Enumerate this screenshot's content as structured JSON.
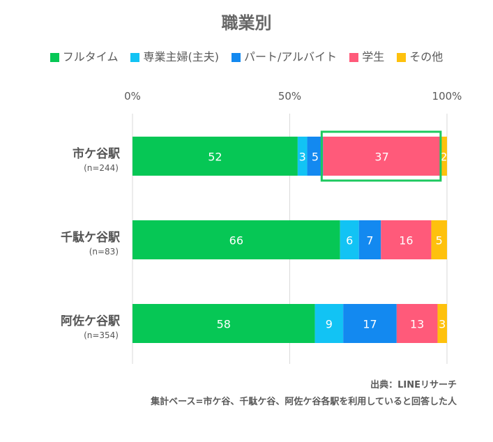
{
  "chart_data": {
    "type": "bar",
    "orientation": "horizontal",
    "stacked": true,
    "title": "職業別",
    "categories": [
      "市ケ谷駅",
      "千駄ケ谷駅",
      "阿佐ケ谷駅"
    ],
    "sample_sizes": [
      "(n=244)",
      "(n=83)",
      "(n=354)"
    ],
    "series": [
      {
        "name": "フルタイム",
        "color": "#06c755",
        "values": [
          52,
          66,
          58
        ]
      },
      {
        "name": "専業主婦(主夫)",
        "color": "#12c3f4",
        "values": [
          3,
          6,
          9
        ]
      },
      {
        "name": "パート/アルバイト",
        "color": "#1389f0",
        "values": [
          5,
          7,
          17
        ]
      },
      {
        "name": "学生",
        "color": "#ff5a7a",
        "values": [
          37,
          16,
          13
        ]
      },
      {
        "name": "その他",
        "color": "#fec10d",
        "values": [
          2,
          5,
          3
        ]
      }
    ],
    "x_ticks": [
      0,
      50,
      100
    ],
    "x_tick_labels": [
      "0%",
      "50%",
      "100%"
    ],
    "xlim": [
      0,
      100
    ],
    "grid": true,
    "legend_position": "top",
    "highlight": {
      "category_index": 0,
      "series_index": 3,
      "color": "#1dc95f"
    }
  },
  "footer": {
    "source": "出典：LINEリサーチ",
    "note": "集計ベース=市ケ谷、千駄ケ谷、阿佐ケ谷各駅を利用していると回答した人"
  }
}
